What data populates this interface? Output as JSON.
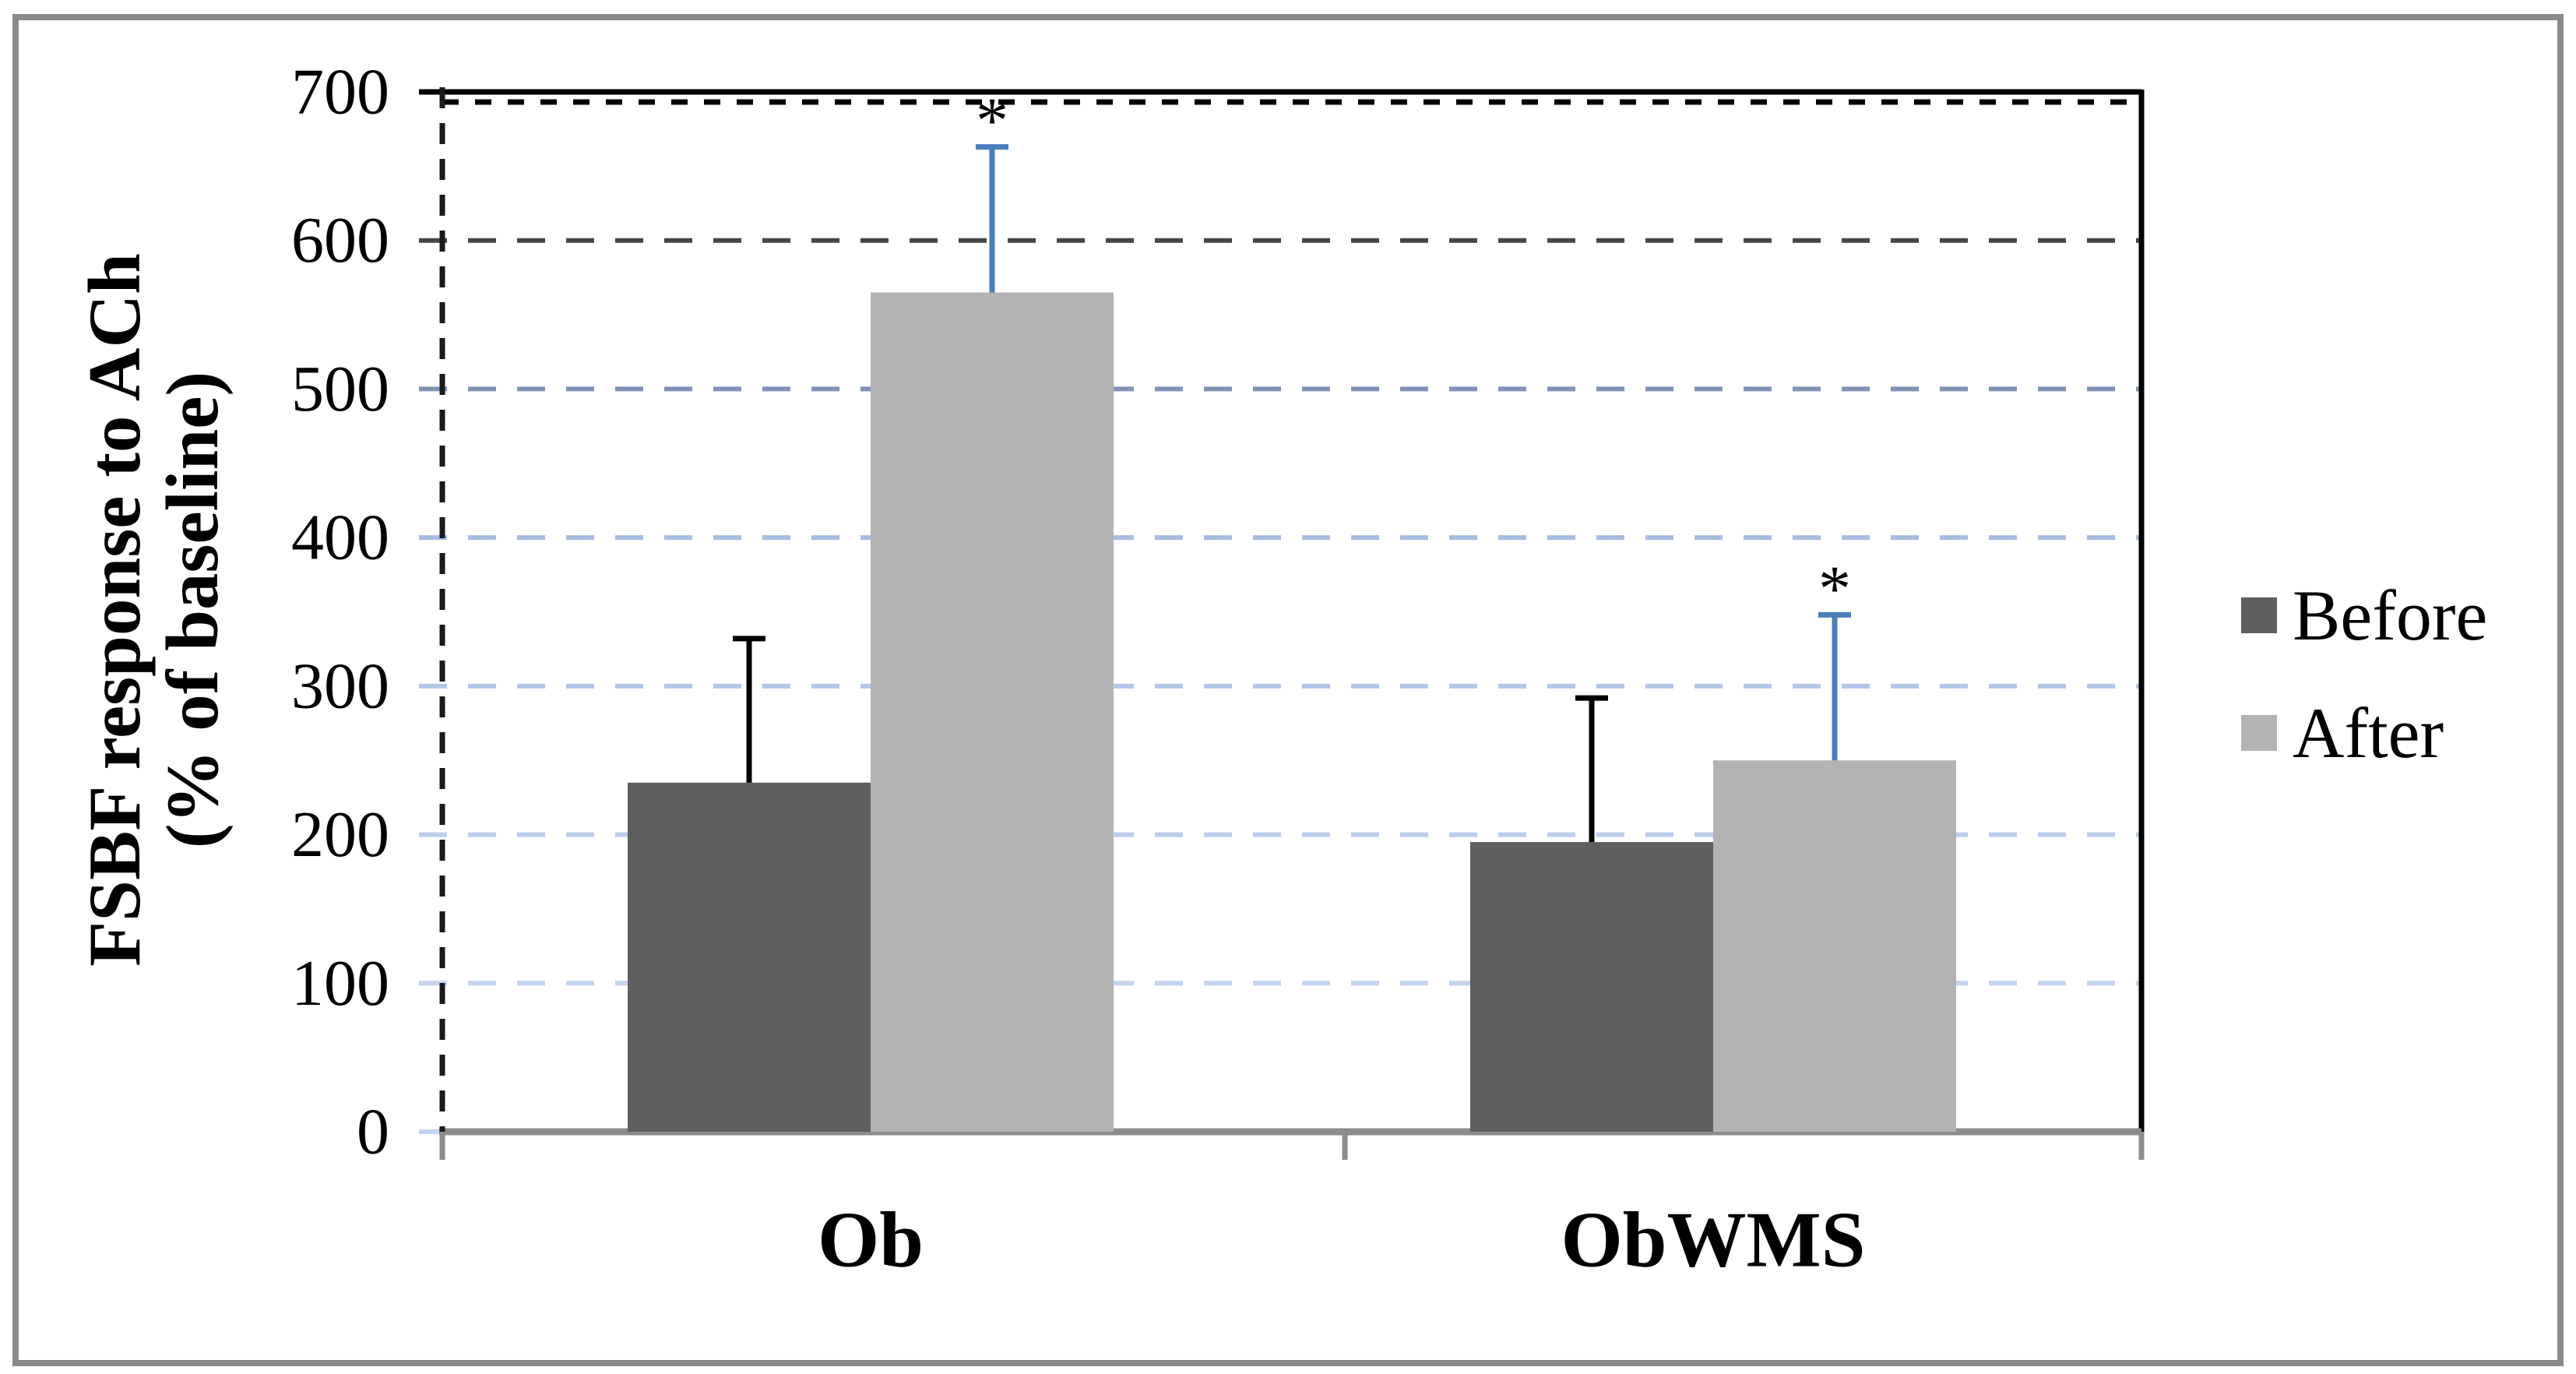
{
  "chart_data": {
    "type": "bar",
    "title": "",
    "categories": [
      "Ob",
      "ObWMS"
    ],
    "series": [
      {
        "name": "Before",
        "values": [
          235,
          195
        ],
        "errors_plus": [
          97,
          97
        ],
        "color": "#5f5f5f",
        "error_color": "#000000",
        "significance": [
          false,
          false
        ]
      },
      {
        "name": "After",
        "values": [
          565,
          250
        ],
        "errors_plus": [
          98,
          98
        ],
        "color": "#b3b3b3",
        "error_color": "#4a7ebb",
        "significance": [
          true,
          true
        ]
      }
    ],
    "annotation_symbol": "*",
    "ylabel_line1": "FSBF response to ACh",
    "ylabel_line2": "(% of baseline)",
    "xlabel": "",
    "ylim": [
      0,
      700
    ],
    "yticks": [
      0,
      100,
      200,
      300,
      400,
      500,
      600,
      700
    ],
    "grid": "horizontal-dashed",
    "legend_position": "right",
    "style": {
      "grid_colors": {
        "100": "#c3d4f1",
        "200": "#bacdee",
        "300": "#b1c6e8",
        "400": "#a6bce0",
        "500": "#8093b6",
        "600": "#45454c"
      },
      "top_border_color": "#000000",
      "y_axis_color": "#1a1a1a",
      "baseline_color": "#8c8c8c",
      "outer_border_color": "#8a8a8a",
      "background_color": "#ffffff"
    }
  },
  "legend": {
    "items": [
      {
        "label": "Before",
        "color": "#5f5f5f"
      },
      {
        "label": "After",
        "color": "#b3b3b3"
      }
    ]
  }
}
